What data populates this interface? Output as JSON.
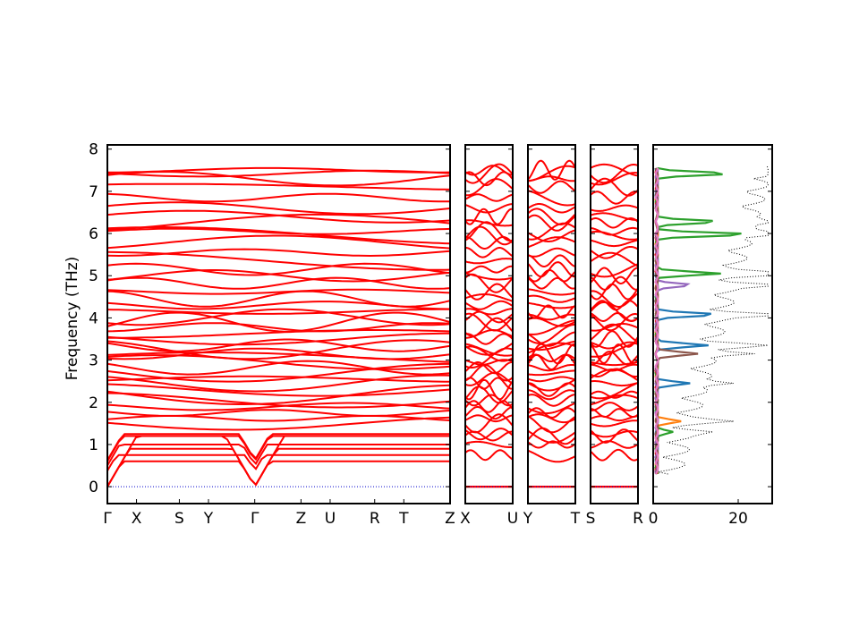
{
  "chart_data": {
    "type": "line",
    "description_free": true,
    "ylabel": "Frequency (THz)",
    "ylim": [
      -0.4,
      8.1
    ],
    "yticks": [
      0,
      1,
      2,
      3,
      4,
      5,
      6,
      7,
      8
    ],
    "colors": {
      "bands": "#ff0000",
      "zero_line": "#0000cc",
      "total_dos": "#000000"
    },
    "panels": [
      {
        "id": "main",
        "kpoints": [
          "Γ",
          "X",
          "S",
          "Y",
          "Γ",
          "Z",
          "U",
          "R",
          "T",
          "Z"
        ],
        "kpos": [
          0,
          0.085,
          0.21,
          0.295,
          0.43,
          0.565,
          0.65,
          0.78,
          0.865,
          1.0
        ]
      },
      {
        "id": "xu",
        "kpoints": [
          "X",
          "U"
        ],
        "kpos": [
          0,
          1
        ]
      },
      {
        "id": "yt",
        "kpoints": [
          "Y",
          "T"
        ],
        "kpos": [
          0,
          1
        ]
      },
      {
        "id": "sr",
        "kpoints": [
          "S",
          "R"
        ],
        "kpos": [
          0,
          1
        ]
      }
    ],
    "dos": {
      "xlim": [
        0,
        28
      ],
      "xticks": [
        0,
        20
      ],
      "series_colors": [
        "#1f77b4",
        "#ff7f0e",
        "#2ca02c",
        "#d62728",
        "#9467bd",
        "#8c564b",
        "#e377c2"
      ],
      "total_style": "dotted",
      "peaks": [
        {
          "f": 7.42,
          "series": 2,
          "v": 17
        },
        {
          "f": 6.28,
          "series": 2,
          "v": 15
        },
        {
          "f": 5.98,
          "series": 2,
          "v": 22
        },
        {
          "f": 5.05,
          "series": 2,
          "v": 15
        },
        {
          "f": 4.78,
          "series": 4,
          "v": 8
        },
        {
          "f": 4.08,
          "series": 0,
          "v": 14
        },
        {
          "f": 3.35,
          "series": 0,
          "v": 12
        },
        {
          "f": 3.15,
          "series": 5,
          "v": 10
        },
        {
          "f": 2.45,
          "series": 0,
          "v": 8
        },
        {
          "f": 1.55,
          "series": 1,
          "v": 6
        },
        {
          "f": 1.3,
          "series": 2,
          "v": 4
        }
      ]
    },
    "bands": [
      0.0,
      0.0,
      0.0,
      0.75,
      1.0,
      1.2,
      1.25,
      1.5,
      1.62,
      1.75,
      1.9,
      2.05,
      2.18,
      2.3,
      2.45,
      2.55,
      2.7,
      2.82,
      2.95,
      3.05,
      3.15,
      3.25,
      3.35,
      3.5,
      3.62,
      3.78,
      3.9,
      4.02,
      4.15,
      4.3,
      4.45,
      4.62,
      4.82,
      5.0,
      5.15,
      5.35,
      5.55,
      5.78,
      5.95,
      6.05,
      6.25,
      6.4,
      6.6,
      6.85,
      7.1,
      7.3,
      7.42,
      7.5
    ]
  }
}
